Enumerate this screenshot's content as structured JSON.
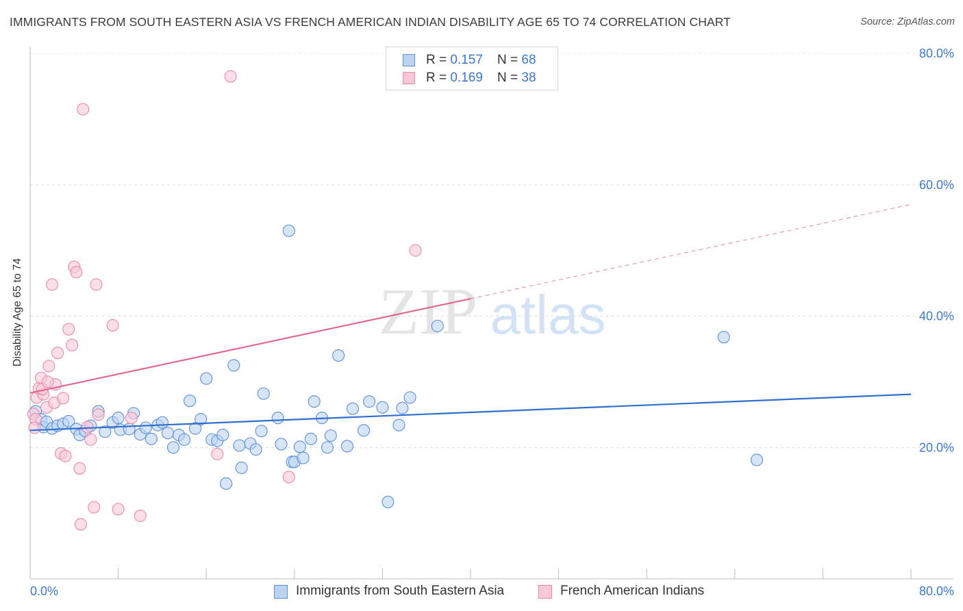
{
  "title": "IMMIGRANTS FROM SOUTH EASTERN ASIA VS FRENCH AMERICAN INDIAN DISABILITY AGE 65 TO 74 CORRELATION CHART",
  "source": "Source: ZipAtlas.com",
  "watermark": {
    "zip": "ZIP",
    "atlas": "atlas"
  },
  "legend": {
    "rows": [
      {
        "r_label": "R = ",
        "r_value": "0.157",
        "n_label": "N = ",
        "n_value": "68"
      },
      {
        "r_label": "R = ",
        "r_value": "0.169",
        "n_label": "N = ",
        "n_value": "38"
      }
    ]
  },
  "chart_data": {
    "type": "scatter",
    "title": "IMMIGRANTS FROM SOUTH EASTERN ASIA VS FRENCH AMERICAN INDIAN DISABILITY AGE 65 TO 74 CORRELATION CHART",
    "xlabel": "",
    "ylabel": "Disability Age 65 to 74",
    "xlim": [
      0,
      80
    ],
    "ylim": [
      0,
      80
    ],
    "x_tick_labels": [
      "0.0%",
      "80.0%"
    ],
    "y_tick_labels": [
      "20.0%",
      "40.0%",
      "60.0%",
      "80.0%"
    ],
    "y_ticks": [
      20,
      40,
      60,
      80
    ],
    "grid": true,
    "legend_position": "top-center",
    "series": [
      {
        "name": "Immigrants from South Eastern Asia",
        "color": "#5b8fd9",
        "fill": "#bcd3f2",
        "r": 0.157,
        "n": 68,
        "trend": {
          "x0": 0,
          "y0": 22.6,
          "x1": 80,
          "y1": 28.1,
          "dashed_from": null
        },
        "points": [
          [
            0.5,
            25.5
          ],
          [
            1,
            24.3
          ],
          [
            1.2,
            23.1
          ],
          [
            1.5,
            23.9
          ],
          [
            2,
            22.9
          ],
          [
            2.5,
            23.3
          ],
          [
            3,
            23.6
          ],
          [
            3.5,
            24
          ],
          [
            4.2,
            22.8
          ],
          [
            4.5,
            21.9
          ],
          [
            5,
            22.5
          ],
          [
            5.5,
            23.3
          ],
          [
            6.2,
            25.5
          ],
          [
            6.8,
            22.4
          ],
          [
            7.5,
            23.8
          ],
          [
            8,
            24.5
          ],
          [
            8.2,
            22.7
          ],
          [
            9,
            22.8
          ],
          [
            9.4,
            25.2
          ],
          [
            10,
            22
          ],
          [
            10.5,
            23
          ],
          [
            11,
            21.3
          ],
          [
            11.6,
            23.4
          ],
          [
            12,
            23.8
          ],
          [
            12.5,
            22.2
          ],
          [
            13,
            20
          ],
          [
            13.5,
            21.9
          ],
          [
            14,
            21.2
          ],
          [
            14.5,
            27.1
          ],
          [
            15,
            22.9
          ],
          [
            15.5,
            24.3
          ],
          [
            16,
            30.5
          ],
          [
            16.5,
            21.2
          ],
          [
            17,
            21
          ],
          [
            17.5,
            21.9
          ],
          [
            17.8,
            14.5
          ],
          [
            18.5,
            32.5
          ],
          [
            19,
            20.3
          ],
          [
            19.2,
            16.9
          ],
          [
            20,
            20.6
          ],
          [
            20.5,
            19.7
          ],
          [
            21,
            22.5
          ],
          [
            21.2,
            28.2
          ],
          [
            22.5,
            24.5
          ],
          [
            22.8,
            20.5
          ],
          [
            23.5,
            53
          ],
          [
            23.8,
            17.8
          ],
          [
            24,
            17.8
          ],
          [
            24.5,
            20.1
          ],
          [
            24.8,
            18.4
          ],
          [
            25.5,
            21.3
          ],
          [
            25.8,
            27
          ],
          [
            26.5,
            24.5
          ],
          [
            27,
            20
          ],
          [
            27.3,
            21.8
          ],
          [
            28,
            34
          ],
          [
            28.8,
            20.2
          ],
          [
            29.3,
            25.9
          ],
          [
            30.3,
            22.6
          ],
          [
            30.8,
            27
          ],
          [
            32,
            26.1
          ],
          [
            32.5,
            11.7
          ],
          [
            33.5,
            23.4
          ],
          [
            33.8,
            26
          ],
          [
            34.5,
            27.6
          ],
          [
            37,
            38.5
          ],
          [
            63,
            36.8
          ],
          [
            66,
            18.1
          ]
        ]
      },
      {
        "name": "French American Indians",
        "color": "#e88aa8",
        "fill": "#f8c8d8",
        "r": 0.169,
        "n": 38,
        "trend": {
          "x0": 0,
          "y0": 28.3,
          "x1": 80,
          "y1": 57,
          "dashed_from": 40
        },
        "points": [
          [
            0.3,
            25.1
          ],
          [
            0.5,
            24.3
          ],
          [
            0.6,
            27.6
          ],
          [
            0.8,
            29
          ],
          [
            1,
            30.6
          ],
          [
            1.2,
            28.1
          ],
          [
            1.5,
            26.1
          ],
          [
            1.7,
            32.4
          ],
          [
            2,
            44.8
          ],
          [
            2.2,
            26.8
          ],
          [
            2.5,
            34.4
          ],
          [
            2.8,
            19.1
          ],
          [
            3.2,
            18.7
          ],
          [
            3.5,
            38
          ],
          [
            3.8,
            35.6
          ],
          [
            4,
            47.5
          ],
          [
            4.2,
            46.7
          ],
          [
            4.5,
            16.8
          ],
          [
            4.6,
            8.3
          ],
          [
            4.8,
            71.5
          ],
          [
            5.2,
            23.1
          ],
          [
            5.5,
            21.2
          ],
          [
            5.8,
            10.9
          ],
          [
            6,
            44.8
          ],
          [
            6.2,
            25
          ],
          [
            7.5,
            38.6
          ],
          [
            8,
            10.6
          ],
          [
            9.2,
            24.5
          ],
          [
            10,
            9.6
          ],
          [
            17,
            19
          ],
          [
            18.2,
            76.5
          ],
          [
            23.5,
            15.5
          ],
          [
            35,
            50
          ],
          [
            0.4,
            23
          ],
          [
            1.1,
            28.9
          ],
          [
            2.3,
            29.6
          ],
          [
            3,
            27.5
          ],
          [
            1.6,
            30
          ]
        ]
      }
    ]
  },
  "bottom_legend": [
    "Immigrants from South Eastern Asia",
    "French American Indians"
  ]
}
